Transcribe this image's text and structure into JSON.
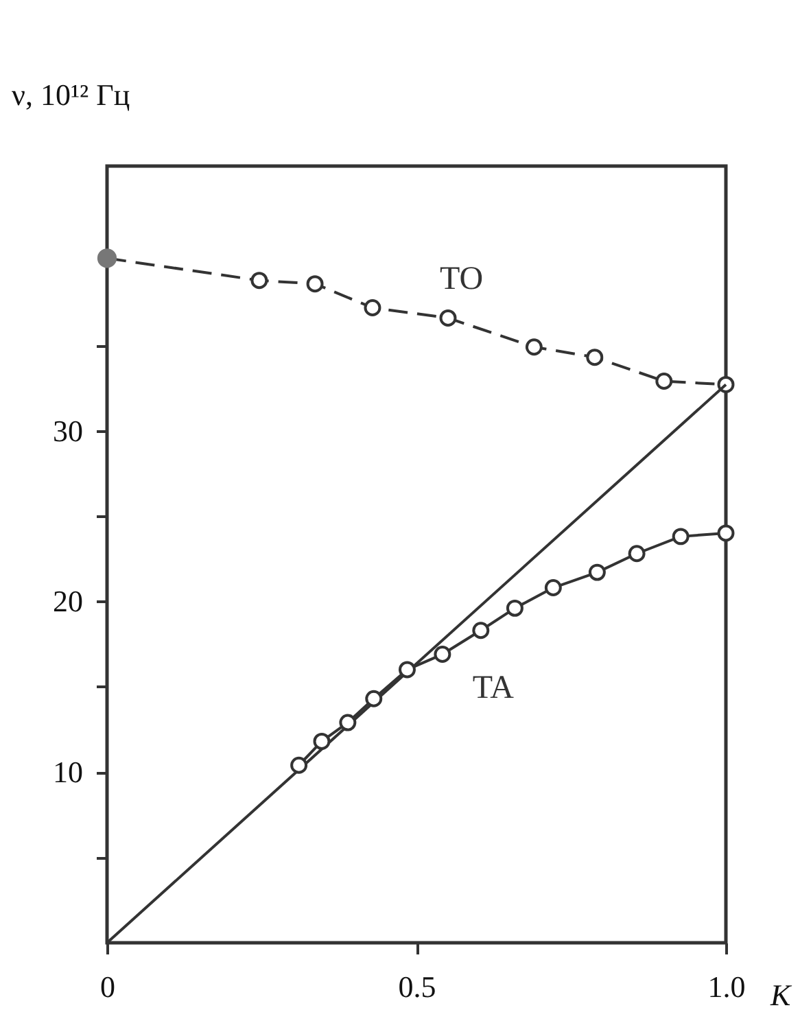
{
  "chart_data": {
    "type": "line",
    "xlabel": "K",
    "ylabel": "ν, 10¹² Гц",
    "xlim": [
      0,
      1
    ],
    "ylim": [
      0,
      45.5
    ],
    "xticks": [
      0,
      0.5,
      {
        "value": 1,
        "label": "1.0"
      }
    ],
    "yticks": [
      {
        "value": 5,
        "label": null
      },
      10,
      {
        "value": 15,
        "label": null
      },
      20,
      {
        "value": 25,
        "label": null
      },
      30,
      {
        "value": 35,
        "label": null
      }
    ],
    "grid": false,
    "series": [
      {
        "name": "TO",
        "color": "#333333",
        "line_style": "dashed",
        "marker": "circle",
        "x": [
          0,
          0.246,
          0.336,
          0.429,
          0.551,
          0.69,
          0.788,
          0.9,
          1.0
        ],
        "values": [
          40.1,
          38.8,
          38.6,
          37.2,
          36.6,
          34.9,
          34.3,
          32.9,
          32.7
        ]
      },
      {
        "type": "scatter",
        "color": "#777777",
        "marker": "circle",
        "x": [
          0
        ],
        "values": [
          40.1
        ]
      },
      {
        "color": "#333333",
        "line_style": "solid",
        "marker": "none",
        "x": [
          0,
          1.0
        ],
        "values": [
          0,
          32.7
        ]
      },
      {
        "name": "TA",
        "color": "#333333",
        "line_style": "solid",
        "marker": "circle",
        "x": [
          0.31,
          0.347,
          0.389,
          0.431,
          0.485,
          0.542,
          0.604,
          0.659,
          0.721,
          0.792,
          0.856,
          0.927,
          1.0
        ],
        "values": [
          10.4,
          11.8,
          12.9,
          14.3,
          16.0,
          16.9,
          18.3,
          19.6,
          20.8,
          21.7,
          22.8,
          23.8,
          24.0
        ]
      }
    ]
  }
}
